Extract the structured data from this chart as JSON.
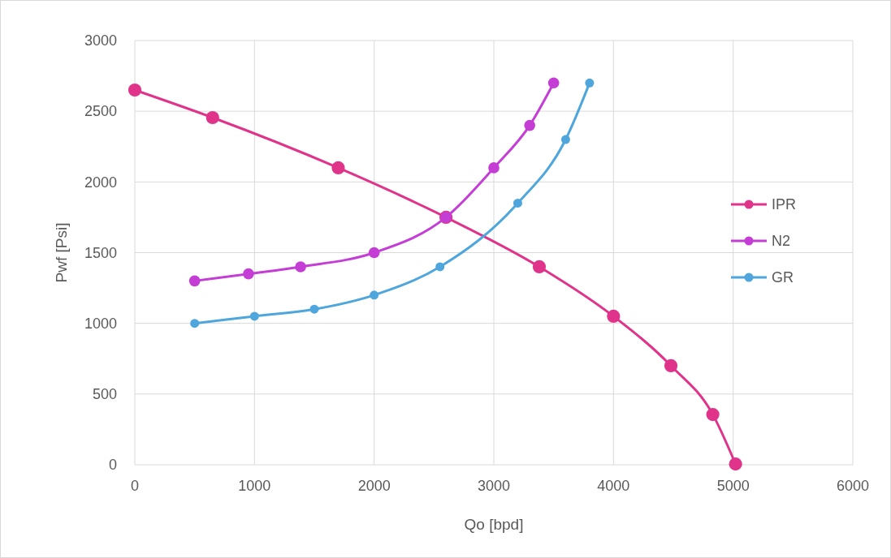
{
  "chart_data": {
    "type": "line",
    "xlabel": "Qo [bpd]",
    "ylabel": "Pwf [Psi]",
    "xlim": [
      0,
      6000
    ],
    "xticks": [
      0,
      1000,
      2000,
      3000,
      4000,
      5000,
      6000
    ],
    "ylim": [
      0,
      3000
    ],
    "yticks": [
      0,
      500,
      1000,
      1500,
      2000,
      2500,
      3000
    ],
    "grid": true,
    "legend": "right",
    "marker": "circle",
    "line_style": "solid",
    "series": [
      {
        "name": "IPR",
        "color": "#e0338a",
        "x": [
          0,
          650,
          1700,
          2600,
          3380,
          4000,
          4480,
          4830,
          5020
        ],
        "values": [
          2650,
          2455,
          2100,
          1750,
          1400,
          1050,
          700,
          355,
          5
        ]
      },
      {
        "name": "N2",
        "color": "#c43ed6",
        "x": [
          500,
          950,
          1385,
          2000,
          2600,
          3000,
          3300,
          3500
        ],
        "values": [
          1300,
          1350,
          1400,
          1500,
          1750,
          2100,
          2400,
          2700
        ]
      },
      {
        "name": "GR",
        "color": "#4ea6dc",
        "x": [
          500,
          1000,
          1500,
          2000,
          2550,
          3200,
          3600,
          3800
        ],
        "values": [
          1000,
          1050,
          1100,
          1200,
          1400,
          1850,
          2300,
          2700
        ]
      }
    ]
  }
}
